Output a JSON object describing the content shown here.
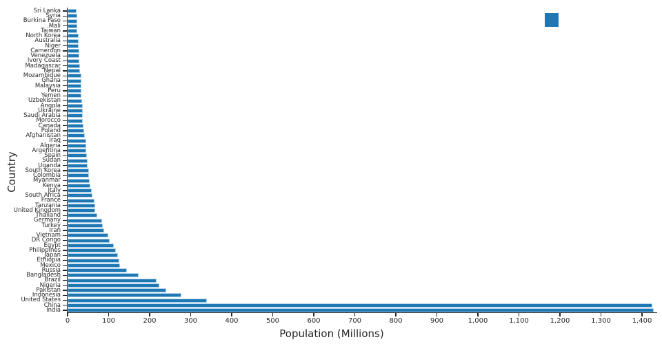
{
  "axes": {
    "xlabel": "Population (Millions)",
    "ylabel": "Country"
  },
  "colors": {
    "bar_fill": "#1f77b4",
    "bar_edge": "#abd0e8",
    "axis": "#262626",
    "background": "#ffffff"
  },
  "legend": {
    "visible": true,
    "position": "upper-right",
    "swatch_color": "#1f77b4",
    "label": ""
  },
  "chart_data": {
    "type": "bar",
    "orientation": "horizontal",
    "title": "",
    "xlabel": "Population (Millions)",
    "ylabel": "Country",
    "xlim": [
      0,
      1400
    ],
    "grid": false,
    "x_ticks": [
      0,
      100,
      200,
      300,
      400,
      500,
      600,
      700,
      800,
      900,
      1000,
      1100,
      1200,
      1300,
      1400
    ],
    "x_tick_labels": [
      "0",
      "100",
      "200",
      "300",
      "400",
      "500",
      "600",
      "700",
      "800",
      "900",
      "1,000",
      "1,100",
      "1,200",
      "1,300",
      "1,400"
    ],
    "rows_top_to_bottom": [
      {
        "country": "Sri Lanka",
        "population_millions": 21.9
      },
      {
        "country": "Syria",
        "population_millions": 23.2
      },
      {
        "country": "Burkina Faso",
        "population_millions": 23.3
      },
      {
        "country": "Mali",
        "population_millions": 23.3
      },
      {
        "country": "Taiwan",
        "population_millions": 23.9
      },
      {
        "country": "North Korea",
        "population_millions": 26.2
      },
      {
        "country": "Australia",
        "population_millions": 26.4
      },
      {
        "country": "Niger",
        "population_millions": 27.2
      },
      {
        "country": "Cameroon",
        "population_millions": 28.6
      },
      {
        "country": "Venezuela",
        "population_millions": 28.8
      },
      {
        "country": "Ivory Coast",
        "population_millions": 28.9
      },
      {
        "country": "Madagascar",
        "population_millions": 30.3
      },
      {
        "country": "Nepal",
        "population_millions": 30.9
      },
      {
        "country": "Mozambique",
        "population_millions": 33.9
      },
      {
        "country": "Ghana",
        "population_millions": 34.1
      },
      {
        "country": "Malaysia",
        "population_millions": 34.3
      },
      {
        "country": "Peru",
        "population_millions": 34.4
      },
      {
        "country": "Yemen",
        "population_millions": 34.4
      },
      {
        "country": "Uzbekistan",
        "population_millions": 35.2
      },
      {
        "country": "Angola",
        "population_millions": 36.7
      },
      {
        "country": "Ukraine",
        "population_millions": 36.7
      },
      {
        "country": "Saudi Arabia",
        "population_millions": 36.9
      },
      {
        "country": "Morocco",
        "population_millions": 37.8
      },
      {
        "country": "Canada",
        "population_millions": 38.8
      },
      {
        "country": "Poland",
        "population_millions": 41.0
      },
      {
        "country": "Afghanistan",
        "population_millions": 42.2
      },
      {
        "country": "Iraq",
        "population_millions": 45.5
      },
      {
        "country": "Algeria",
        "population_millions": 45.6
      },
      {
        "country": "Argentina",
        "population_millions": 45.8
      },
      {
        "country": "Spain",
        "population_millions": 47.5
      },
      {
        "country": "Sudan",
        "population_millions": 48.1
      },
      {
        "country": "Uganda",
        "population_millions": 48.6
      },
      {
        "country": "South Korea",
        "population_millions": 51.8
      },
      {
        "country": "Colombia",
        "population_millions": 52.1
      },
      {
        "country": "Myanmar",
        "population_millions": 54.6
      },
      {
        "country": "Kenya",
        "population_millions": 55.1
      },
      {
        "country": "Italy",
        "population_millions": 58.9
      },
      {
        "country": "South Africa",
        "population_millions": 60.4
      },
      {
        "country": "France",
        "population_millions": 64.8
      },
      {
        "country": "Tanzania",
        "population_millions": 67.4
      },
      {
        "country": "United Kingdom",
        "population_millions": 67.7
      },
      {
        "country": "Thailand",
        "population_millions": 71.8
      },
      {
        "country": "Germany",
        "population_millions": 83.3
      },
      {
        "country": "Turkey",
        "population_millions": 85.8
      },
      {
        "country": "Iran",
        "population_millions": 89.2
      },
      {
        "country": "Vietnam",
        "population_millions": 98.9
      },
      {
        "country": "DR Congo",
        "population_millions": 102.3
      },
      {
        "country": "Egypt",
        "population_millions": 112.7
      },
      {
        "country": "Philippines",
        "population_millions": 117.3
      },
      {
        "country": "Japan",
        "population_millions": 123.3
      },
      {
        "country": "Ethiopia",
        "population_millions": 126.5
      },
      {
        "country": "Mexico",
        "population_millions": 128.5
      },
      {
        "country": "Russia",
        "population_millions": 144.4
      },
      {
        "country": "Bangladesh",
        "population_millions": 172.9
      },
      {
        "country": "Brazil",
        "population_millions": 216.4
      },
      {
        "country": "Nigeria",
        "population_millions": 223.8
      },
      {
        "country": "Pakistan",
        "population_millions": 240.5
      },
      {
        "country": "Indonesia",
        "population_millions": 277.5
      },
      {
        "country": "United States",
        "population_millions": 340.0
      },
      {
        "country": "China",
        "population_millions": 1425.7
      },
      {
        "country": "India",
        "population_millions": 1428.6
      }
    ]
  }
}
